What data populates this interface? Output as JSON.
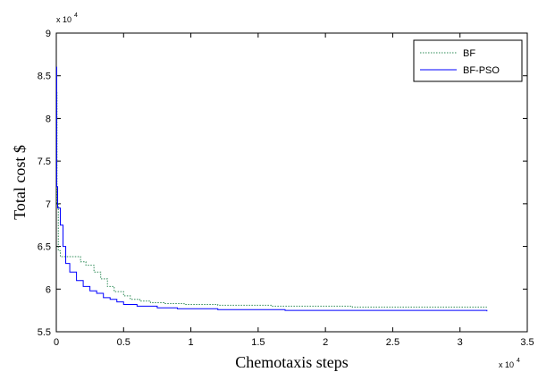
{
  "chart_data": {
    "type": "line",
    "xlabel": "Chemotaxis steps",
    "ylabel": "Total cost $",
    "x_multiplier_label": "x 10",
    "x_multiplier_exp": "4",
    "y_multiplier_label": "x 10",
    "y_multiplier_exp": "4",
    "xlim": [
      0,
      3.5
    ],
    "ylim": [
      5.5,
      9
    ],
    "x_ticks": [
      0,
      0.5,
      1,
      1.5,
      2,
      2.5,
      3,
      3.5
    ],
    "x_tick_labels": [
      "0",
      "0.5",
      "1",
      "1.5",
      "2",
      "2.5",
      "3",
      "3.5"
    ],
    "y_ticks": [
      5.5,
      6,
      6.5,
      7,
      7.5,
      8,
      8.5,
      9
    ],
    "y_tick_labels": [
      "5.5",
      "6",
      "6.5",
      "7",
      "7.5",
      "8",
      "8.5",
      "9"
    ],
    "grid": false,
    "legend_position": "top-right",
    "series": [
      {
        "name": "BF",
        "color": "#2e8b57",
        "style": "dotted",
        "step": true,
        "points": [
          [
            0,
            8.3
          ],
          [
            0.005,
            7.0
          ],
          [
            0.015,
            6.45
          ],
          [
            0.03,
            6.38
          ],
          [
            0.1,
            6.38
          ],
          [
            0.18,
            6.32
          ],
          [
            0.22,
            6.28
          ],
          [
            0.28,
            6.2
          ],
          [
            0.33,
            6.12
          ],
          [
            0.38,
            6.03
          ],
          [
            0.43,
            5.97
          ],
          [
            0.5,
            5.92
          ],
          [
            0.55,
            5.88
          ],
          [
            0.62,
            5.86
          ],
          [
            0.7,
            5.84
          ],
          [
            0.8,
            5.83
          ],
          [
            0.95,
            5.82
          ],
          [
            1.2,
            5.81
          ],
          [
            1.6,
            5.8
          ],
          [
            2.2,
            5.79
          ],
          [
            3.2,
            5.79
          ]
        ]
      },
      {
        "name": "BF-PSO",
        "color": "#0000ff",
        "style": "solid",
        "step": true,
        "points": [
          [
            0,
            8.6
          ],
          [
            0.003,
            7.2
          ],
          [
            0.01,
            6.95
          ],
          [
            0.03,
            6.75
          ],
          [
            0.05,
            6.5
          ],
          [
            0.07,
            6.3
          ],
          [
            0.1,
            6.2
          ],
          [
            0.15,
            6.1
          ],
          [
            0.2,
            6.03
          ],
          [
            0.25,
            5.98
          ],
          [
            0.3,
            5.95
          ],
          [
            0.35,
            5.9
          ],
          [
            0.4,
            5.88
          ],
          [
            0.45,
            5.85
          ],
          [
            0.5,
            5.82
          ],
          [
            0.6,
            5.8
          ],
          [
            0.75,
            5.78
          ],
          [
            0.9,
            5.77
          ],
          [
            1.2,
            5.76
          ],
          [
            1.7,
            5.75
          ],
          [
            2.2,
            5.75
          ],
          [
            3.2,
            5.74
          ]
        ]
      }
    ]
  }
}
